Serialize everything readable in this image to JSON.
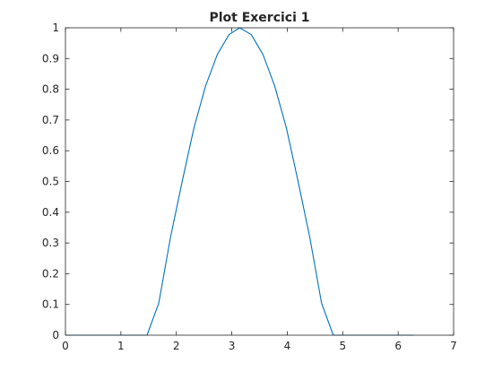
{
  "chart_data": {
    "type": "line",
    "title": "Plot Exercici 1",
    "xlabel": "",
    "ylabel": "",
    "xlim": [
      0,
      7
    ],
    "ylim": [
      0,
      1
    ],
    "x_ticks": [
      "0",
      "1",
      "2",
      "3",
      "4",
      "5",
      "6",
      "7"
    ],
    "y_ticks": [
      "0",
      "0.1",
      "0.2",
      "0.3",
      "0.4",
      "0.5",
      "0.6",
      "0.7",
      "0.8",
      "0.9",
      "1"
    ],
    "grid": false,
    "legend": "none",
    "series_color": "#0072BD",
    "series": [
      {
        "x": [
          0,
          0.2,
          0.4,
          0.6,
          0.8,
          1.0,
          1.2,
          1.4,
          1.471,
          1.683,
          1.894,
          2.105,
          2.317,
          2.528,
          2.739,
          2.951,
          3.142,
          3.351,
          3.562,
          3.773,
          3.985,
          4.196,
          4.407,
          4.619,
          4.83,
          5.0,
          5.4,
          5.8,
          6.283
        ],
        "y": [
          0,
          0,
          0,
          0,
          0,
          0,
          0,
          0,
          0,
          0.104,
          0.318,
          0.5,
          0.674,
          0.811,
          0.913,
          0.978,
          1.0,
          0.978,
          0.913,
          0.811,
          0.674,
          0.5,
          0.318,
          0.104,
          0,
          0,
          0,
          0,
          0
        ]
      }
    ]
  }
}
